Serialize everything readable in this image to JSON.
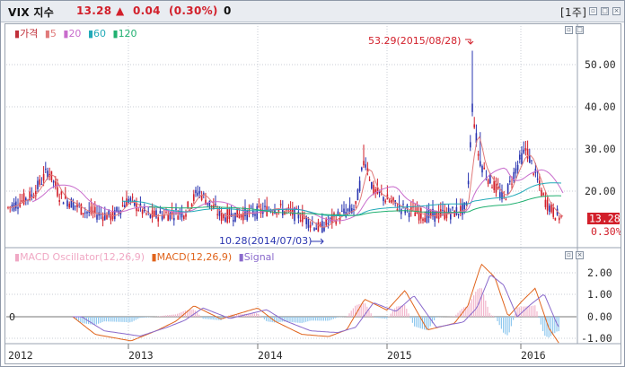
{
  "header": {
    "title": "VIX 지수",
    "price": "13.28",
    "arrow": "▲",
    "change": "0.04",
    "change_pct": "(0.30%)",
    "volume": "0",
    "period_button": "[1주]"
  },
  "legend_price": [
    {
      "label": "가격",
      "color": "#c0303a"
    },
    {
      "label": "5",
      "color": "#e07a7a"
    },
    {
      "label": "20",
      "color": "#c86ccc"
    },
    {
      "label": "60",
      "color": "#22aab8"
    },
    {
      "label": "120",
      "color": "#20b070"
    }
  ],
  "legend_macd": [
    {
      "label": "MACD Oscillator(12,26,9)",
      "color": "#f2b5cc"
    },
    {
      "label": "MACD(12,26,9)",
      "color": "#e0641c"
    },
    {
      "label": "Signal",
      "color": "#8a6acc"
    }
  ],
  "price_axis": [
    "50.00",
    "40.00",
    "30.00",
    "20.00"
  ],
  "macd_axis": [
    "2.00",
    "1.00",
    "0.00",
    "-1.00"
  ],
  "macd_zero_left": "0",
  "current_price_tag": "13.28",
  "current_pct_tag": "0.30%",
  "annotation_high": "53.29(2015/08/28)",
  "annotation_low": "10.28(2014/07/03)",
  "x_axis": [
    "2012",
    "2013",
    "2014",
    "2015",
    "2016"
  ],
  "colors": {
    "up": "#d21f2a",
    "down": "#2a35b0",
    "macd": "#e0641c",
    "signal": "#8a6acc",
    "osc_pos": "#f2b5cc",
    "osc_neg": "#8fc8ee"
  },
  "chart_data": {
    "type": "candlestick",
    "period": "weekly",
    "price_range": [
      10,
      55
    ],
    "macd_range": [
      -1.5,
      3
    ],
    "key_points": [
      {
        "label": "high",
        "value": 53.29,
        "date": "2015/08/28"
      },
      {
        "label": "low",
        "value": 10.28,
        "date": "2014/07/03"
      },
      {
        "label": "last",
        "value": 13.28
      }
    ]
  }
}
